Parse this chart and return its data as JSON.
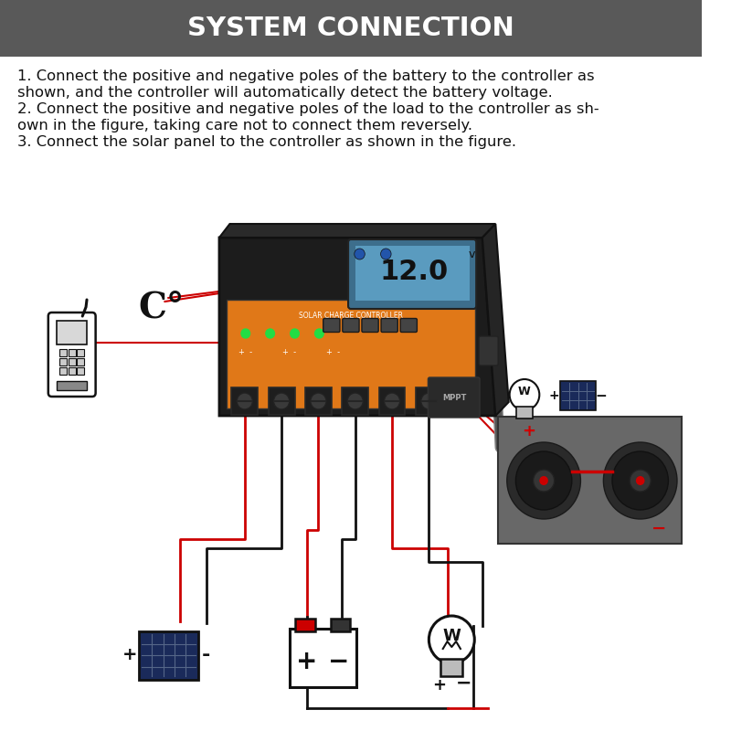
{
  "title": "SYSTEM CONNECTION",
  "title_bg": "#595959",
  "title_color": "#ffffff",
  "title_fontsize": 21,
  "bg_color": "#ffffff",
  "instructions": [
    "1. Connect the positive and negative poles of the battery to the controller as",
    "shown, and the controller will automatically detect the battery voltage.",
    "2. Connect the positive and negative poles of the load to the controller as sh-",
    "own in the figure, taking care not to connect them reversely.",
    "3. Connect the solar panel to the controller as shown in the figure."
  ],
  "instruction_fontsize": 11.8,
  "instruction_color": "#111111",
  "red": "#cc0000",
  "black": "#111111",
  "dark_gray": "#444444",
  "mid_gray": "#666666",
  "orange": "#e07818",
  "lcd_blue": "#4488bb",
  "load_bg": "#686868"
}
